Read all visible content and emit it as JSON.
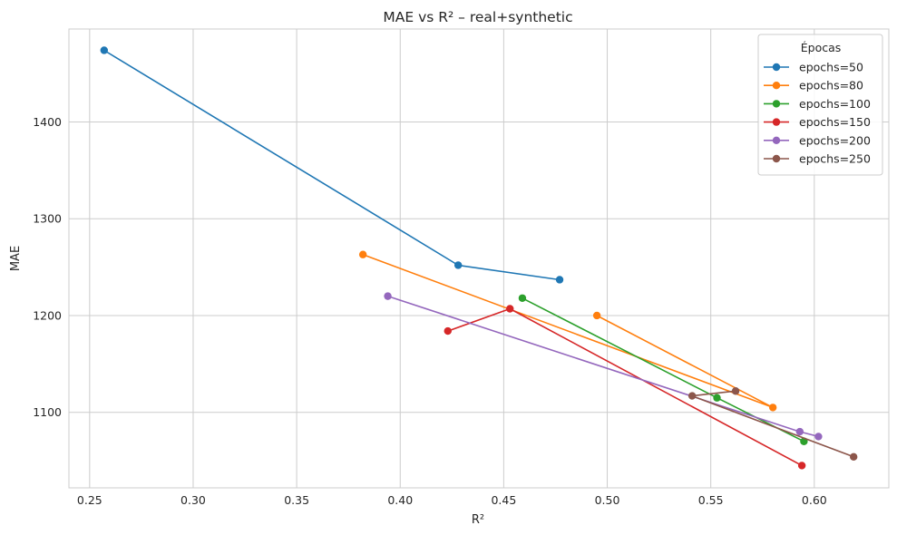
{
  "chart_data": {
    "type": "line",
    "title": "MAE vs R² – real+synthetic",
    "xlabel": "R²",
    "ylabel": "MAE",
    "xlim": [
      0.24,
      0.636
    ],
    "ylim": [
      1022,
      1496
    ],
    "xticks": [
      "0.25",
      "0.30",
      "0.35",
      "0.40",
      "0.45",
      "0.50",
      "0.55",
      "0.60"
    ],
    "yticks": [
      "1100",
      "1200",
      "1300",
      "1400"
    ],
    "grid": true,
    "legend": {
      "title": "Épocas",
      "position": "top-right"
    },
    "series": [
      {
        "name": "epochs=50",
        "color": "#1f77b4",
        "x": [
          0.257,
          0.428,
          0.477
        ],
        "y": [
          1474,
          1252,
          1237
        ]
      },
      {
        "name": "epochs=80",
        "color": "#ff7f0e",
        "x": [
          0.382,
          0.58,
          0.495
        ],
        "y": [
          1263,
          1105,
          1200
        ]
      },
      {
        "name": "epochs=100",
        "color": "#2ca02c",
        "x": [
          0.459,
          0.553,
          0.595
        ],
        "y": [
          1218,
          1115,
          1070
        ]
      },
      {
        "name": "epochs=150",
        "color": "#d62728",
        "x": [
          0.423,
          0.453,
          0.594
        ],
        "y": [
          1184,
          1207,
          1045
        ]
      },
      {
        "name": "epochs=200",
        "color": "#9467bd",
        "x": [
          0.394,
          0.593,
          0.602
        ],
        "y": [
          1220,
          1080,
          1075
        ]
      },
      {
        "name": "epochs=250",
        "color": "#8c564b",
        "x": [
          0.562,
          0.541,
          0.619
        ],
        "y": [
          1122,
          1117,
          1054
        ]
      }
    ]
  }
}
